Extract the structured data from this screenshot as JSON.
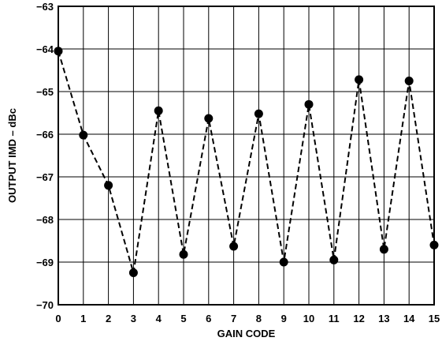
{
  "chart_data": {
    "type": "line",
    "title": "",
    "xlabel": "GAIN CODE",
    "ylabel": "OUTPUT IMD – dBc",
    "xlim": [
      0,
      15
    ],
    "ylim": [
      -70,
      -63
    ],
    "x_ticks": [
      "0",
      "1",
      "2",
      "3",
      "4",
      "5",
      "6",
      "7",
      "8",
      "9",
      "10",
      "11",
      "12",
      "13",
      "14",
      "15"
    ],
    "y_ticks": [
      "−63",
      "−64",
      "−65",
      "−66",
      "−67",
      "−68",
      "−69",
      "−70"
    ],
    "grid": true,
    "legend": "none",
    "series": [
      {
        "line_style": "dashed",
        "marker": "filled-circle",
        "color": "#000000",
        "x": [
          0,
          1,
          2,
          3,
          4,
          5,
          6,
          7,
          8,
          9,
          10,
          11,
          12,
          13,
          14,
          15
        ],
        "y": [
          -64.05,
          -66.02,
          -67.2,
          -69.25,
          -65.45,
          -68.82,
          -65.63,
          -68.63,
          -65.52,
          -69.0,
          -65.3,
          -68.95,
          -64.72,
          -68.7,
          -64.75,
          -68.6
        ]
      }
    ]
  }
}
